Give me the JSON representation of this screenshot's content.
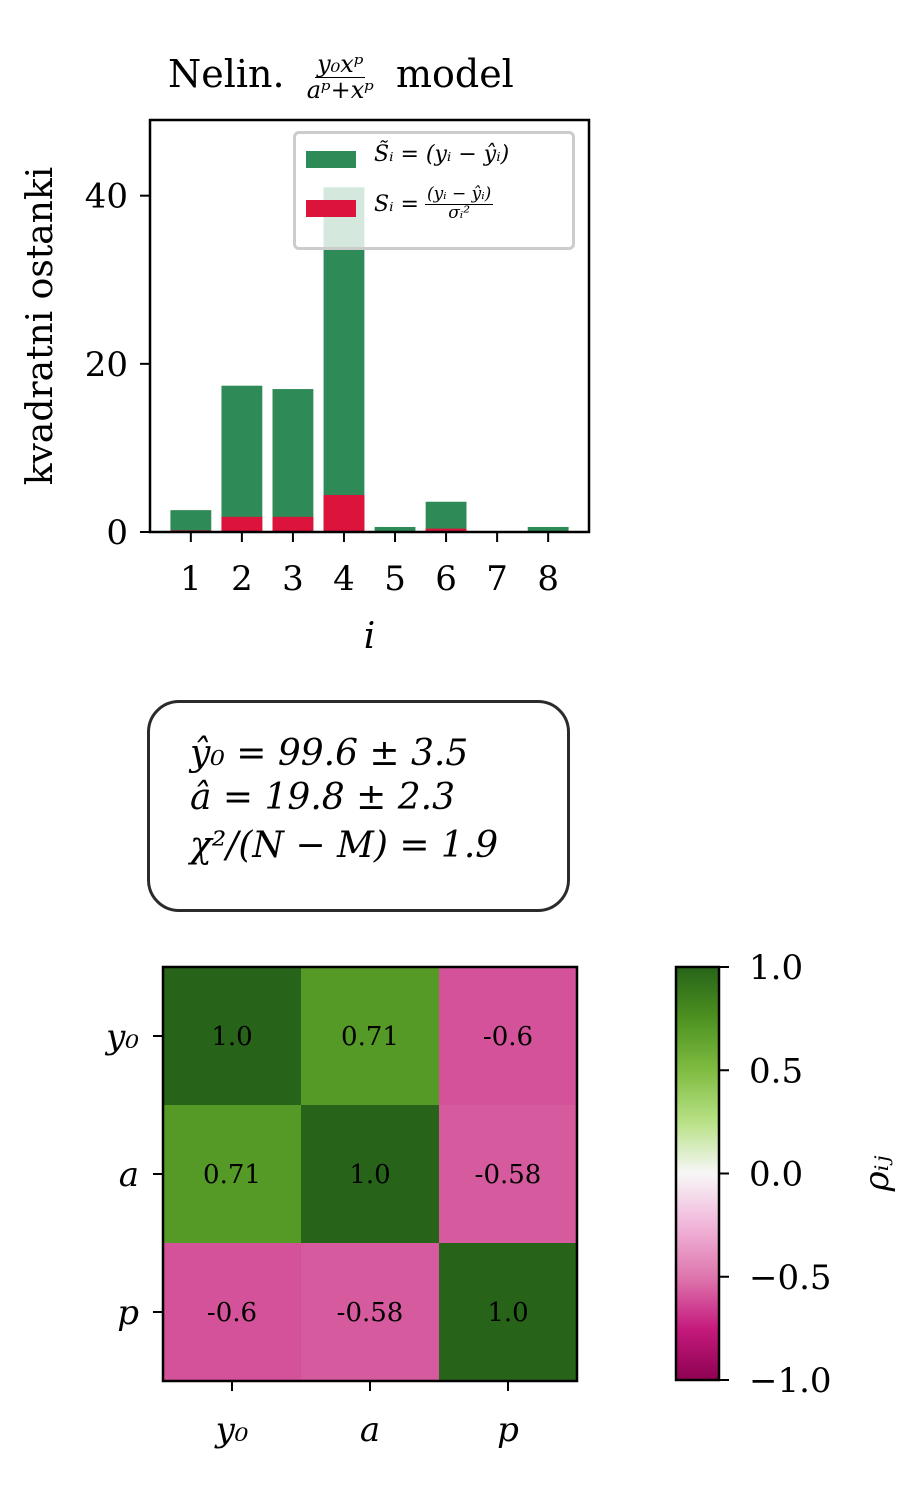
{
  "chart_data": [
    {
      "type": "bar",
      "stacked": false,
      "title_prefix": "Nelin.",
      "title_fraction_num": "y₀xᵖ",
      "title_fraction_den": "aᵖ+xᵖ",
      "title_suffix": "model",
      "xlabel": "i",
      "ylabel": "kvadratni ostanki",
      "categories": [
        "1",
        "2",
        "3",
        "4",
        "5",
        "6",
        "7",
        "8"
      ],
      "x": [
        1,
        2,
        3,
        4,
        5,
        6,
        7,
        8
      ],
      "xlim": [
        0.2,
        8.8
      ],
      "ylim": [
        0,
        49
      ],
      "yticks": [
        0,
        20,
        40
      ],
      "ytick_labels": [
        "0",
        "20",
        "40"
      ],
      "legend_position": "top-right",
      "series": [
        {
          "name": "S̃ᵢ = (yᵢ − ŷᵢ)",
          "color": "#2e8b57",
          "values": [
            2.6,
            17.4,
            17.0,
            41.0,
            0.6,
            3.6,
            0.0,
            0.6
          ]
        },
        {
          "name_left": "Sᵢ =",
          "name_num": "(yᵢ − ŷᵢ)",
          "name_den": "σᵢ²",
          "color": "#dc143c",
          "values": [
            0.2,
            1.8,
            1.8,
            4.4,
            0.0,
            0.4,
            0.0,
            0.0
          ]
        }
      ]
    },
    {
      "type": "heatmap",
      "xlabels": [
        "y₀",
        "a",
        "p"
      ],
      "ylabels": [
        "y₀",
        "a",
        "p"
      ],
      "values": [
        [
          1.0,
          0.71,
          -0.6
        ],
        [
          0.71,
          1.0,
          -0.58
        ],
        [
          -0.6,
          -0.58,
          1.0
        ]
      ],
      "cell_labels": [
        [
          "1.0",
          "0.71",
          "-0.6"
        ],
        [
          "0.71",
          "1.0",
          "-0.58"
        ],
        [
          "-0.6",
          "-0.58",
          "1.0"
        ]
      ],
      "colormap": "PiYG",
      "vmin": -1,
      "vmax": 1,
      "colorbar_label": "ρᵢⱼ",
      "colorbar_ticks": [
        1.0,
        0.5,
        0.0,
        -0.5,
        -1.0
      ],
      "colorbar_tick_labels": [
        "1.0",
        "0.5",
        "0.0",
        "−0.5",
        "−1.0"
      ]
    }
  ],
  "stats_box": {
    "line1": "ŷ₀ = 99.6 ± 3.5",
    "line2": "â = 19.8 ± 2.3",
    "line3": "χ²/(N − M) = 1.9"
  }
}
